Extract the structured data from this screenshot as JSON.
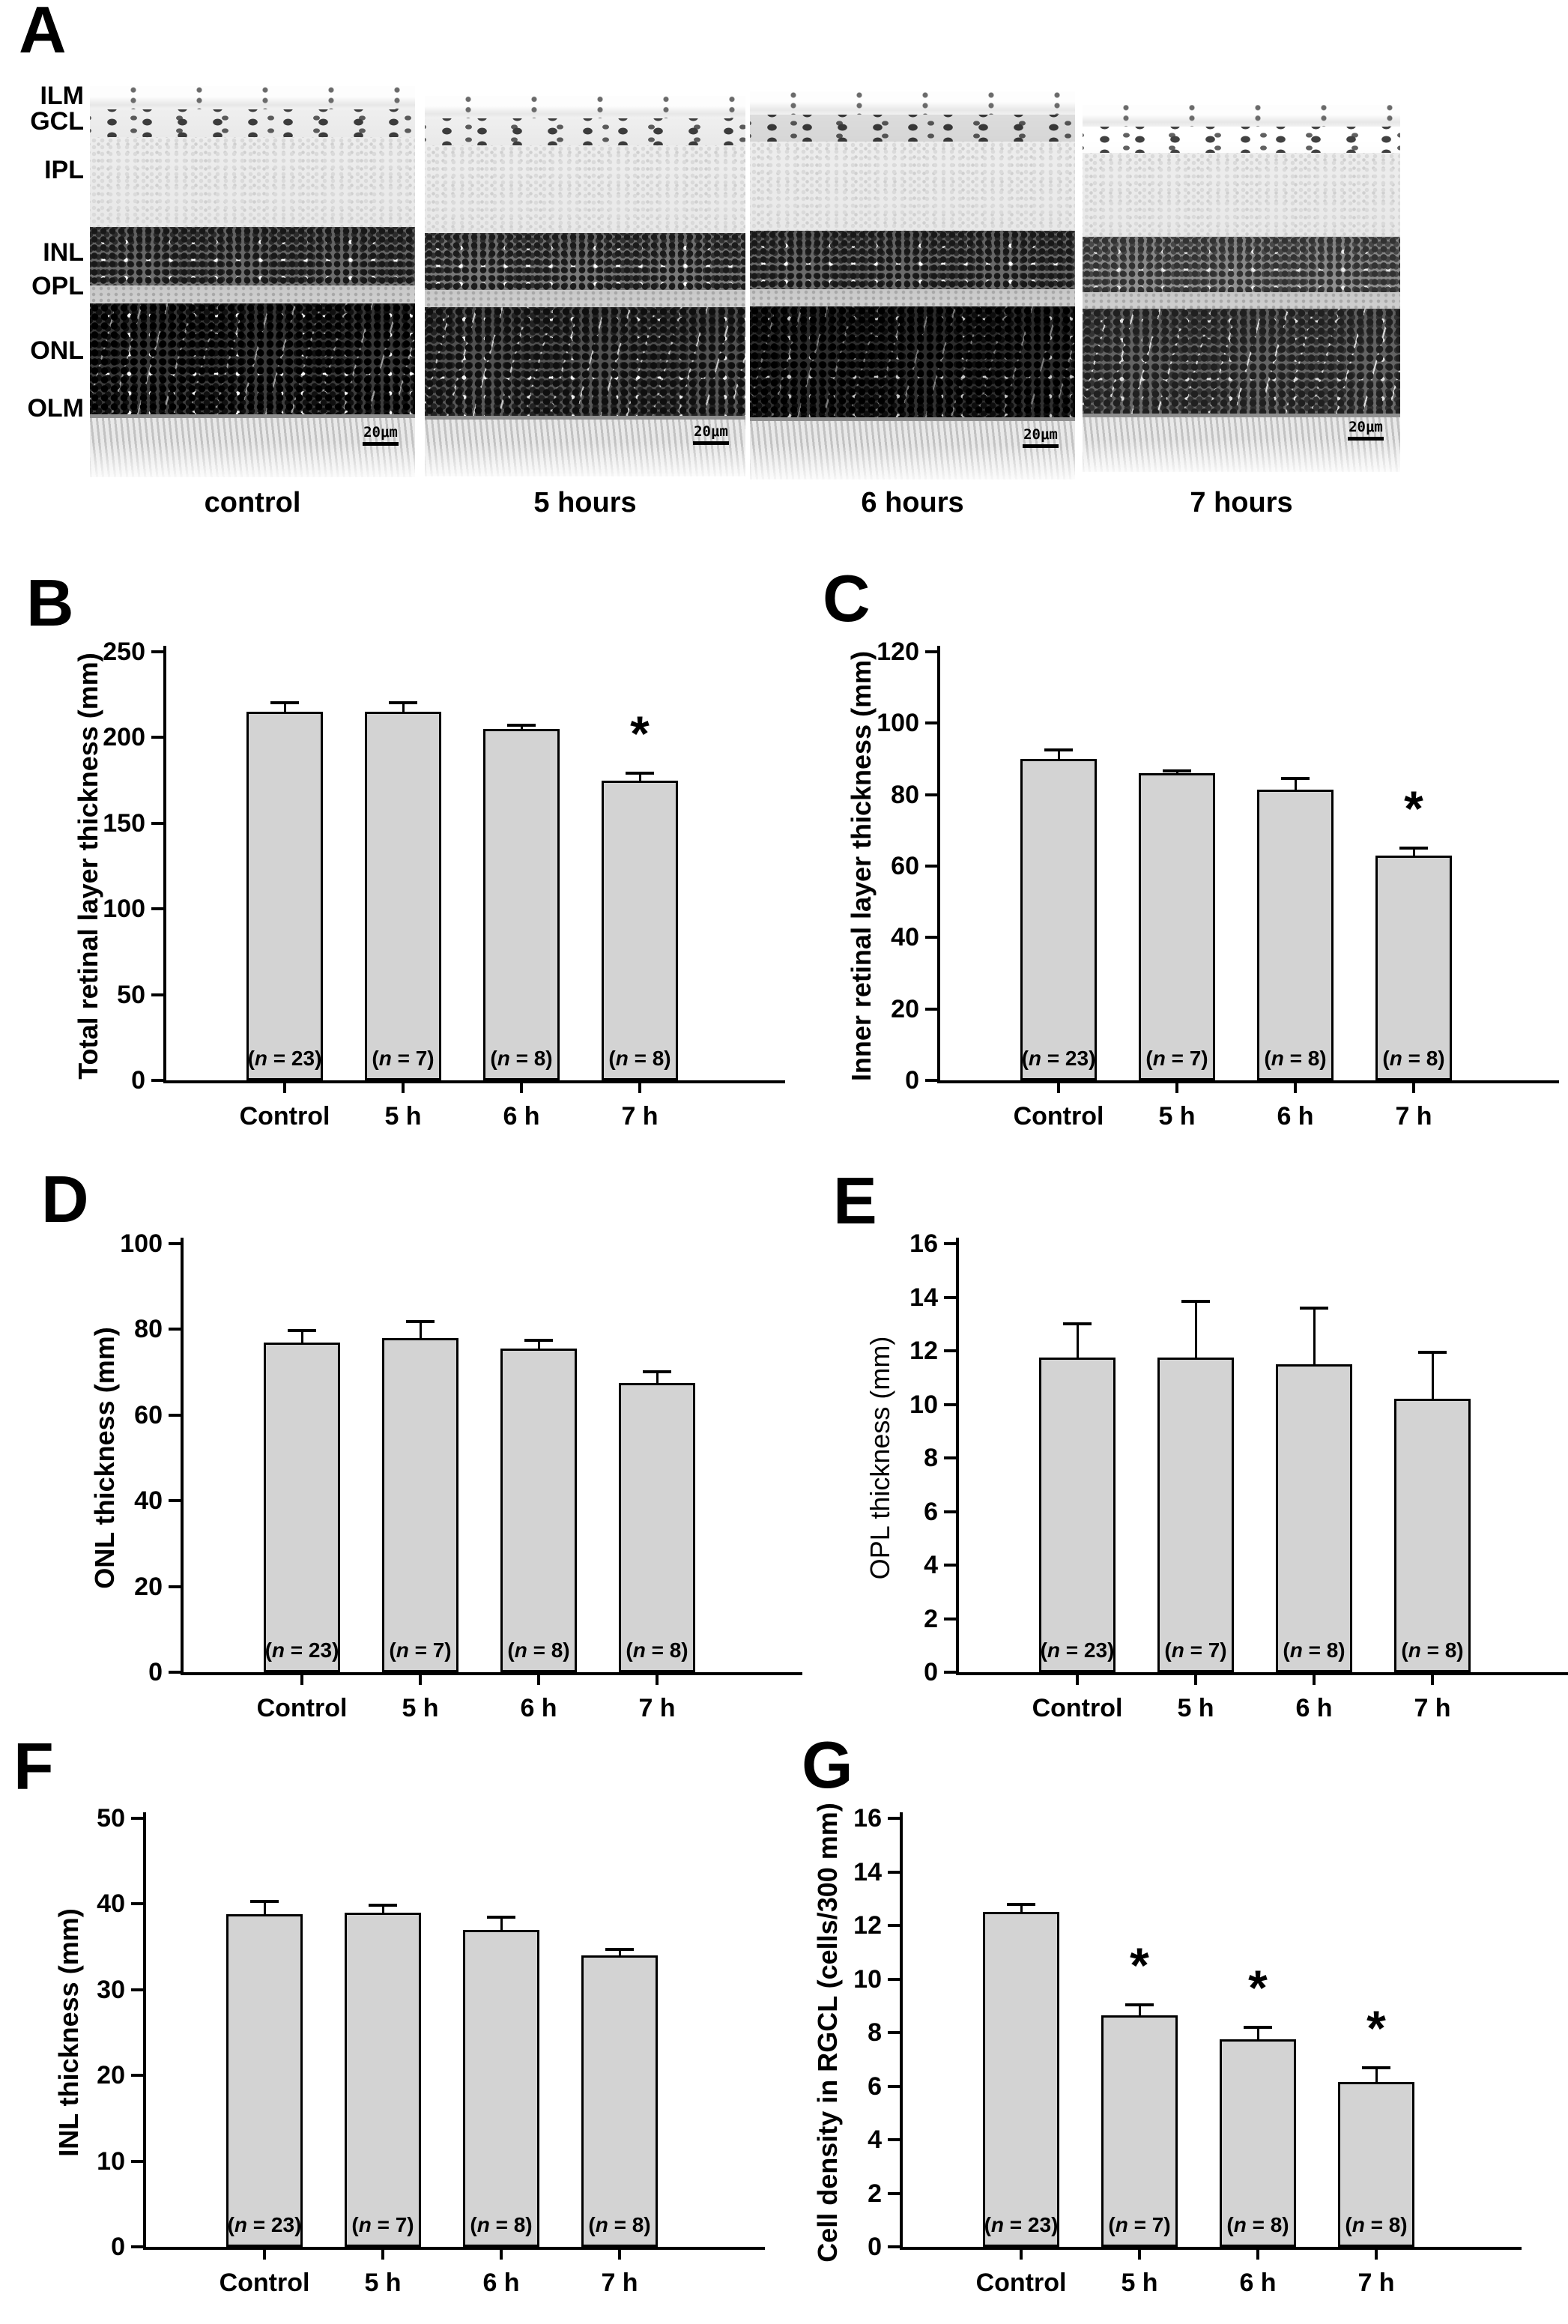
{
  "panelA": {
    "letter": "A",
    "layer_labels": [
      "ILM",
      "GCL",
      "IPL",
      "INL",
      "OPL",
      "ONL",
      "OLM"
    ],
    "captions": [
      "control",
      "5 hours",
      "6 hours",
      "7 hours"
    ],
    "scale_bar_label": "20μm"
  },
  "chart_data": [
    {
      "letter": "B",
      "type": "bar",
      "ylabel": "Total retinal layer thickness (mm)",
      "ylim": [
        0,
        250
      ],
      "ystep": 50,
      "categories": [
        "Control",
        "5 h",
        "6 h",
        "7 h"
      ],
      "values": [
        215,
        215,
        205,
        175
      ],
      "errors": [
        6,
        6,
        3,
        5
      ],
      "significant": [
        false,
        false,
        false,
        true
      ],
      "n_labels": [
        "(n = 23)",
        "(n = 7)",
        "(n = 8)",
        "(n = 8)"
      ]
    },
    {
      "letter": "C",
      "type": "bar",
      "ylabel": "Inner retinal layer thickness (mm)",
      "ylim": [
        0,
        120
      ],
      "ystep": 20,
      "categories": [
        "Control",
        "5 h",
        "6 h",
        "7 h"
      ],
      "values": [
        90,
        86,
        81.5,
        63
      ],
      "errors": [
        3,
        1,
        3.5,
        2.5
      ],
      "significant": [
        false,
        false,
        false,
        true
      ],
      "n_labels": [
        "(n = 23)",
        "(n = 7)",
        "(n = 8)",
        "(n = 8)"
      ]
    },
    {
      "letter": "D",
      "type": "bar",
      "ylabel": "ONL thickness (mm)",
      "ylim": [
        0,
        100
      ],
      "ystep": 20,
      "categories": [
        "Control",
        "5 h",
        "6 h",
        "7 h"
      ],
      "values": [
        77,
        78,
        75.5,
        67.5
      ],
      "errors": [
        3,
        4.2,
        2.3,
        3
      ],
      "significant": [
        false,
        false,
        false,
        false
      ],
      "n_labels": [
        "(n = 23)",
        "(n = 7)",
        "(n = 8)",
        "(n = 8)"
      ]
    },
    {
      "letter": "E",
      "type": "bar",
      "ylabel": "OPL thickness (mm)",
      "ylim": [
        0,
        16
      ],
      "ystep": 2,
      "categories": [
        "Control",
        "5 h",
        "6 h",
        "7 h"
      ],
      "values": [
        11.75,
        11.75,
        11.5,
        10.2
      ],
      "errors": [
        1.3,
        2.15,
        2.15,
        1.8
      ],
      "significant": [
        false,
        false,
        false,
        false
      ],
      "n_labels": [
        "(n = 23)",
        "(n = 7)",
        "(n = 8)",
        "(n = 8)"
      ]
    },
    {
      "letter": "F",
      "type": "bar",
      "ylabel": "INL thickness (mm)",
      "ylim": [
        0,
        50
      ],
      "ystep": 10,
      "categories": [
        "Control",
        "5 h",
        "6 h",
        "7 h"
      ],
      "values": [
        38.8,
        39,
        37,
        34
      ],
      "errors": [
        1.7,
        1,
        1.6,
        0.9
      ],
      "significant": [
        false,
        false,
        false,
        false
      ],
      "n_labels": [
        "(n = 23)",
        "(n = 7)",
        "(n = 8)",
        "(n = 8)"
      ]
    },
    {
      "letter": "G",
      "type": "bar",
      "ylabel": "Cell density in RGCL (cells/300 mm)",
      "ylim": [
        0,
        16
      ],
      "ystep": 2,
      "categories": [
        "Control",
        "5 h",
        "6 h",
        "7 h"
      ],
      "values": [
        12.5,
        8.65,
        7.75,
        6.15
      ],
      "errors": [
        0.35,
        0.45,
        0.5,
        0.6
      ],
      "significant": [
        false,
        true,
        true,
        true
      ],
      "n_labels": [
        "(n = 23)",
        "(n = 7)",
        "(n = 8)",
        "(n = 8)"
      ]
    }
  ],
  "colors": {
    "bar_fill": "#d3d3d3",
    "bar_border": "#000000",
    "axis": "#000000",
    "background": "#ffffff"
  }
}
